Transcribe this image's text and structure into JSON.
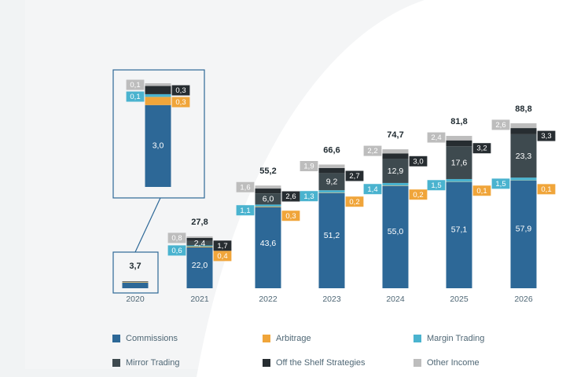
{
  "colors": {
    "commissions": "#2d6897",
    "arbitrage": "#f0a53a",
    "margin_trading": "#4ab3cf",
    "mirror_trading": "#3e4a4f",
    "off_the_shelf": "#272d31",
    "other_income": "#bdbdbd"
  },
  "chart_data": {
    "type": "bar",
    "stacked": true,
    "categories": [
      "2020",
      "2021",
      "2022",
      "2023",
      "2024",
      "2025",
      "2026"
    ],
    "series": [
      {
        "name": "Commissions",
        "key": "commissions",
        "values": [
          3.0,
          22.0,
          43.6,
          51.2,
          55.0,
          57.1,
          57.9
        ],
        "labels": [
          "3,0",
          "22,0",
          "43,6",
          "51,2",
          "55,0",
          "57,1",
          "57,9"
        ]
      },
      {
        "name": "Arbitrage",
        "key": "arbitrage",
        "values": [
          0.3,
          0.4,
          0.3,
          0.2,
          0.2,
          0.1,
          0.1
        ],
        "labels": [
          "0,3",
          "0,4",
          "0,3",
          "0,2",
          "0,2",
          "0,1",
          "0,1"
        ]
      },
      {
        "name": "Margin Trading",
        "key": "margin_trading",
        "values": [
          0.1,
          0.6,
          1.1,
          1.3,
          1.4,
          1.5,
          1.5
        ],
        "labels": [
          "0,1",
          "0,6",
          "1,1",
          "1,3",
          "1,4",
          "1,5",
          "1,5"
        ]
      },
      {
        "name": "Mirror Trading",
        "key": "mirror_trading",
        "values": [
          0.0,
          2.4,
          6.0,
          9.2,
          12.9,
          17.6,
          23.3
        ],
        "labels": [
          "",
          "2,4",
          "6,0",
          "9,2",
          "12,9",
          "17,6",
          "23,3"
        ]
      },
      {
        "name": "Off the Shelf Strategies",
        "key": "off_the_shelf",
        "values": [
          0.3,
          1.7,
          2.6,
          2.7,
          3.0,
          3.2,
          3.3
        ],
        "labels": [
          "0,3",
          "1,7",
          "2,6",
          "2,7",
          "3,0",
          "3,2",
          "3,3"
        ]
      },
      {
        "name": "Other Income",
        "key": "other_income",
        "values": [
          0.1,
          0.8,
          1.6,
          1.9,
          2.2,
          2.4,
          2.6
        ],
        "labels": [
          "0,1",
          "0,8",
          "1,6",
          "1,9",
          "2,2",
          "2,4",
          "2,6"
        ]
      }
    ],
    "totals": [
      "3,7",
      "27,8",
      "55,2",
      "66,6",
      "74,7",
      "81,8",
      "88,8"
    ],
    "inset_year": "2020",
    "ylim": [
      0,
      95
    ]
  },
  "legend": [
    {
      "label": "Commissions",
      "key": "commissions"
    },
    {
      "label": "Arbitrage",
      "key": "arbitrage"
    },
    {
      "label": "Margin Trading",
      "key": "margin_trading"
    },
    {
      "label": "Mirror Trading",
      "key": "mirror_trading"
    },
    {
      "label": "Off the Shelf Strategies",
      "key": "off_the_shelf"
    },
    {
      "label": "Other Income",
      "key": "other_income"
    }
  ]
}
